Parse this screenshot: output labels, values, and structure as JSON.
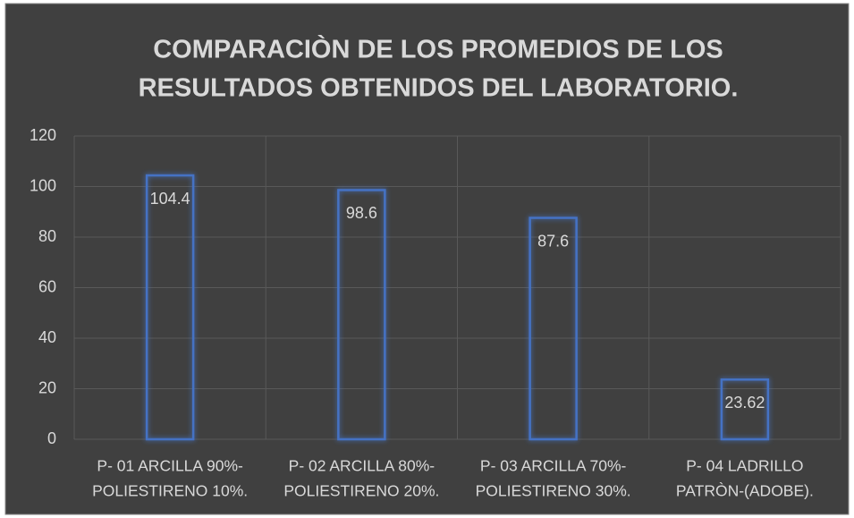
{
  "chart_data": {
    "type": "bar",
    "title": [
      "COMPARACIÒN DE LOS PROMEDIOS DE LOS",
      "RESULTADOS OBTENIDOS DEL LABORATORIO."
    ],
    "categories": [
      [
        "P- 01 ARCILLA 90%-",
        "POLIESTIRENO 10%."
      ],
      [
        "P- 02 ARCILLA 80%-",
        "POLIESTIRENO 20%."
      ],
      [
        "P- 03 ARCILLA 70%-",
        "POLIESTIRENO 30%."
      ],
      [
        "P- 04 LADRILLO",
        "PATRÒN-(ADOBE)."
      ]
    ],
    "values": [
      104.4,
      98.6,
      87.6,
      23.62
    ],
    "color": "#4472c4",
    "ylim": [
      0,
      120
    ],
    "yticks": [
      0,
      20,
      40,
      60,
      80,
      100,
      120
    ],
    "grid": true
  }
}
